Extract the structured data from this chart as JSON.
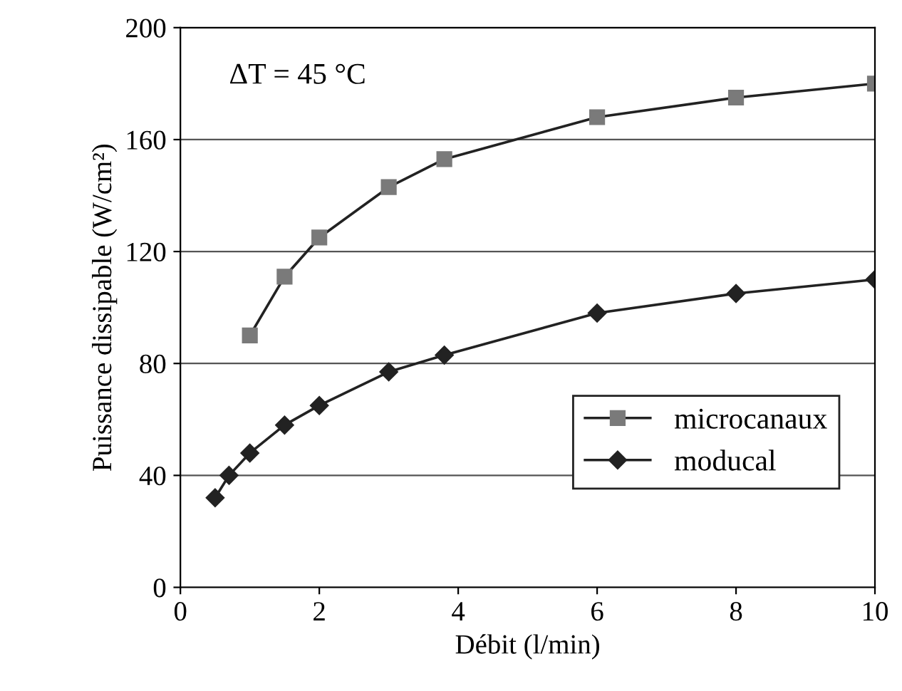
{
  "chart_data": {
    "type": "line",
    "xlabel": "Débit (l/min)",
    "ylabel": "Puissance dissipable (W/cm²)",
    "annotations": [
      "ΔT = 45 °C"
    ],
    "series": [
      {
        "name": "microcanaux",
        "color": "#7a7a7a",
        "marker": "square",
        "x": [
          1,
          1.5,
          2,
          3,
          3.8,
          6,
          8,
          10
        ],
        "values": [
          90,
          111,
          125,
          143,
          153,
          168,
          175,
          180
        ]
      },
      {
        "name": "moducal",
        "color": "#222222",
        "marker": "diamond",
        "x": [
          0.5,
          0.7,
          1,
          1.5,
          2,
          3,
          3.8,
          6,
          8,
          10
        ],
        "values": [
          32,
          40,
          48,
          58,
          65,
          77,
          83,
          98,
          105,
          110
        ]
      }
    ],
    "xlim": [
      0,
      10
    ],
    "xticks": [
      0,
      2,
      4,
      6,
      8,
      10
    ],
    "ylim": [
      0,
      200
    ],
    "yticks": [
      0,
      40,
      80,
      120,
      160,
      200
    ],
    "grid": "y",
    "legend": "bottom right",
    "line_style": "solid"
  }
}
